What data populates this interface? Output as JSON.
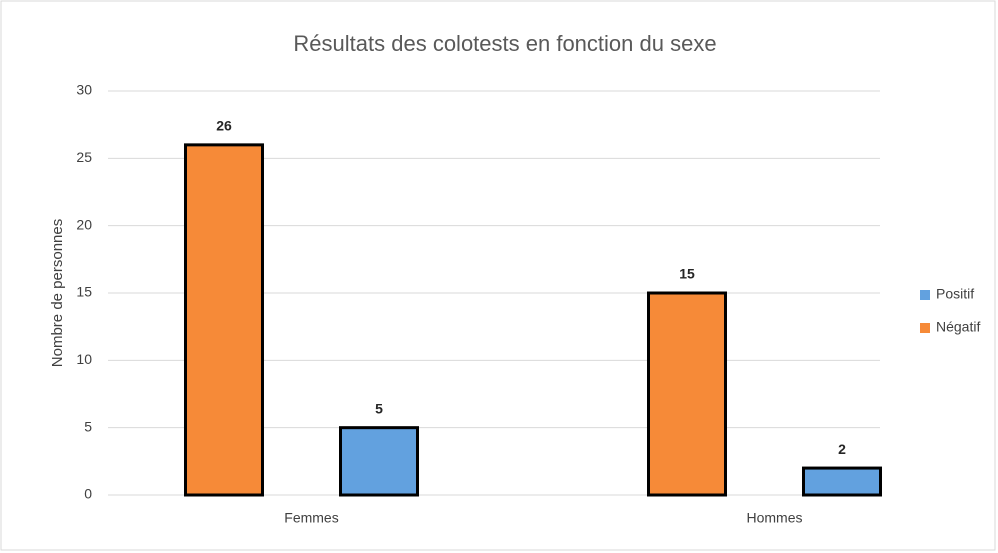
{
  "chart_data": {
    "type": "bar",
    "title": "Résultats des colotests en fonction du sexe",
    "y_label": "Nombre de personnes",
    "categories": [
      "Femmes",
      "Hommes"
    ],
    "series": [
      {
        "name": "Négatif",
        "color": "#f68a38",
        "values": [
          26,
          15
        ]
      },
      {
        "name": "Positif",
        "color": "#62a1df",
        "values": [
          5,
          2
        ]
      }
    ],
    "ylim": [
      0,
      30
    ],
    "yticks": [
      0,
      5,
      10,
      15,
      20,
      25,
      30
    ],
    "grid": true,
    "legend": "right"
  }
}
